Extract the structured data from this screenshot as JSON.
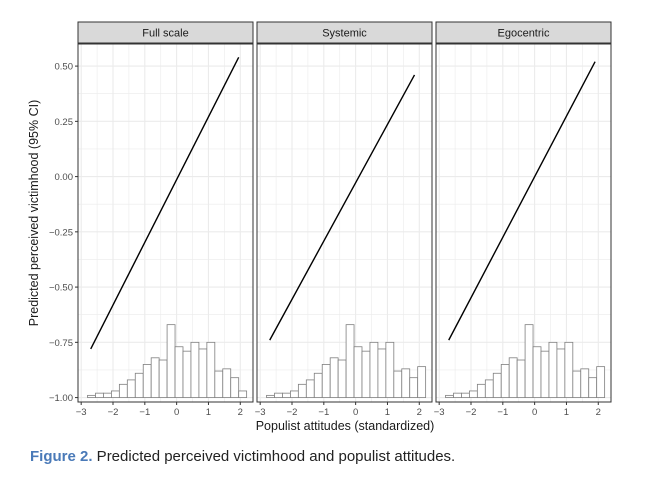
{
  "chart_data": {
    "type": "line",
    "ylabel": "Predicted perceived victimhood (95% CI)",
    "xlabel": "Populist attitudes (standardized)",
    "xlim": [
      -3.1,
      2.4
    ],
    "ylim": [
      -1.02,
      0.6
    ],
    "x_ticks": [
      -3,
      -2,
      -1,
      0,
      1,
      2
    ],
    "x_tick_labels": [
      "−3",
      "−2",
      "−1",
      "0",
      "1",
      "2"
    ],
    "y_ticks": [
      0.5,
      0.25,
      0.0,
      -0.25,
      -0.5,
      -0.75,
      -1.0
    ],
    "y_tick_labels": [
      "0.50",
      "0.25",
      "0.00",
      "−0.25",
      "−0.50",
      "−0.75",
      "−1.00"
    ],
    "grid": true,
    "histogram": {
      "bin_edges": [
        -2.8,
        -2.55,
        -2.3,
        -2.05,
        -1.8,
        -1.55,
        -1.3,
        -1.05,
        -0.8,
        -0.55,
        -0.3,
        -0.05,
        0.2,
        0.45,
        0.7,
        0.95,
        1.2,
        1.45,
        1.7,
        1.95,
        2.2
      ],
      "heights": [
        -0.99,
        -0.98,
        -0.98,
        -0.97,
        -0.94,
        -0.92,
        -0.89,
        -0.85,
        -0.82,
        -0.83,
        -0.67,
        -0.77,
        -0.79,
        -0.75,
        -0.78,
        -0.75,
        -0.88,
        -0.87,
        -0.91,
        -0.97
      ],
      "baseline": -1.0
    },
    "panels": [
      {
        "title": "Full scale",
        "line": {
          "x": [
            -2.7,
            1.95
          ],
          "y": [
            -0.78,
            0.54
          ]
        },
        "hist_heights": [
          -0.99,
          -0.98,
          -0.98,
          -0.97,
          -0.94,
          -0.92,
          -0.89,
          -0.85,
          -0.82,
          -0.83,
          -0.67,
          -0.77,
          -0.79,
          -0.75,
          -0.78,
          -0.75,
          -0.88,
          -0.87,
          -0.91,
          -0.97
        ]
      },
      {
        "title": "Systemic",
        "line": {
          "x": [
            -2.7,
            1.85
          ],
          "y": [
            -0.74,
            0.46
          ]
        },
        "hist_heights": [
          -0.99,
          -0.98,
          -0.98,
          -0.97,
          -0.94,
          -0.92,
          -0.89,
          -0.85,
          -0.82,
          -0.83,
          -0.67,
          -0.77,
          -0.79,
          -0.75,
          -0.78,
          -0.75,
          -0.88,
          -0.87,
          -0.91,
          -0.86
        ]
      },
      {
        "title": "Egocentric",
        "line": {
          "x": [
            -2.7,
            1.9
          ],
          "y": [
            -0.74,
            0.52
          ]
        },
        "hist_heights": [
          -0.99,
          -0.98,
          -0.98,
          -0.97,
          -0.94,
          -0.92,
          -0.89,
          -0.85,
          -0.82,
          -0.83,
          -0.67,
          -0.77,
          -0.79,
          -0.75,
          -0.78,
          -0.75,
          -0.88,
          -0.87,
          -0.91,
          -0.86
        ]
      }
    ]
  },
  "caption": {
    "figure_label": "Figure 2.",
    "text": " Predicted perceived victimhood and populist attitudes."
  },
  "colors": {
    "strip_fill": "#d9d9d9",
    "panel_border": "#333333",
    "grid": "#ebebeb",
    "line": "#000000",
    "hist_bar_stroke": "#7f7f7f",
    "caption_label": "#4a7ab8"
  }
}
